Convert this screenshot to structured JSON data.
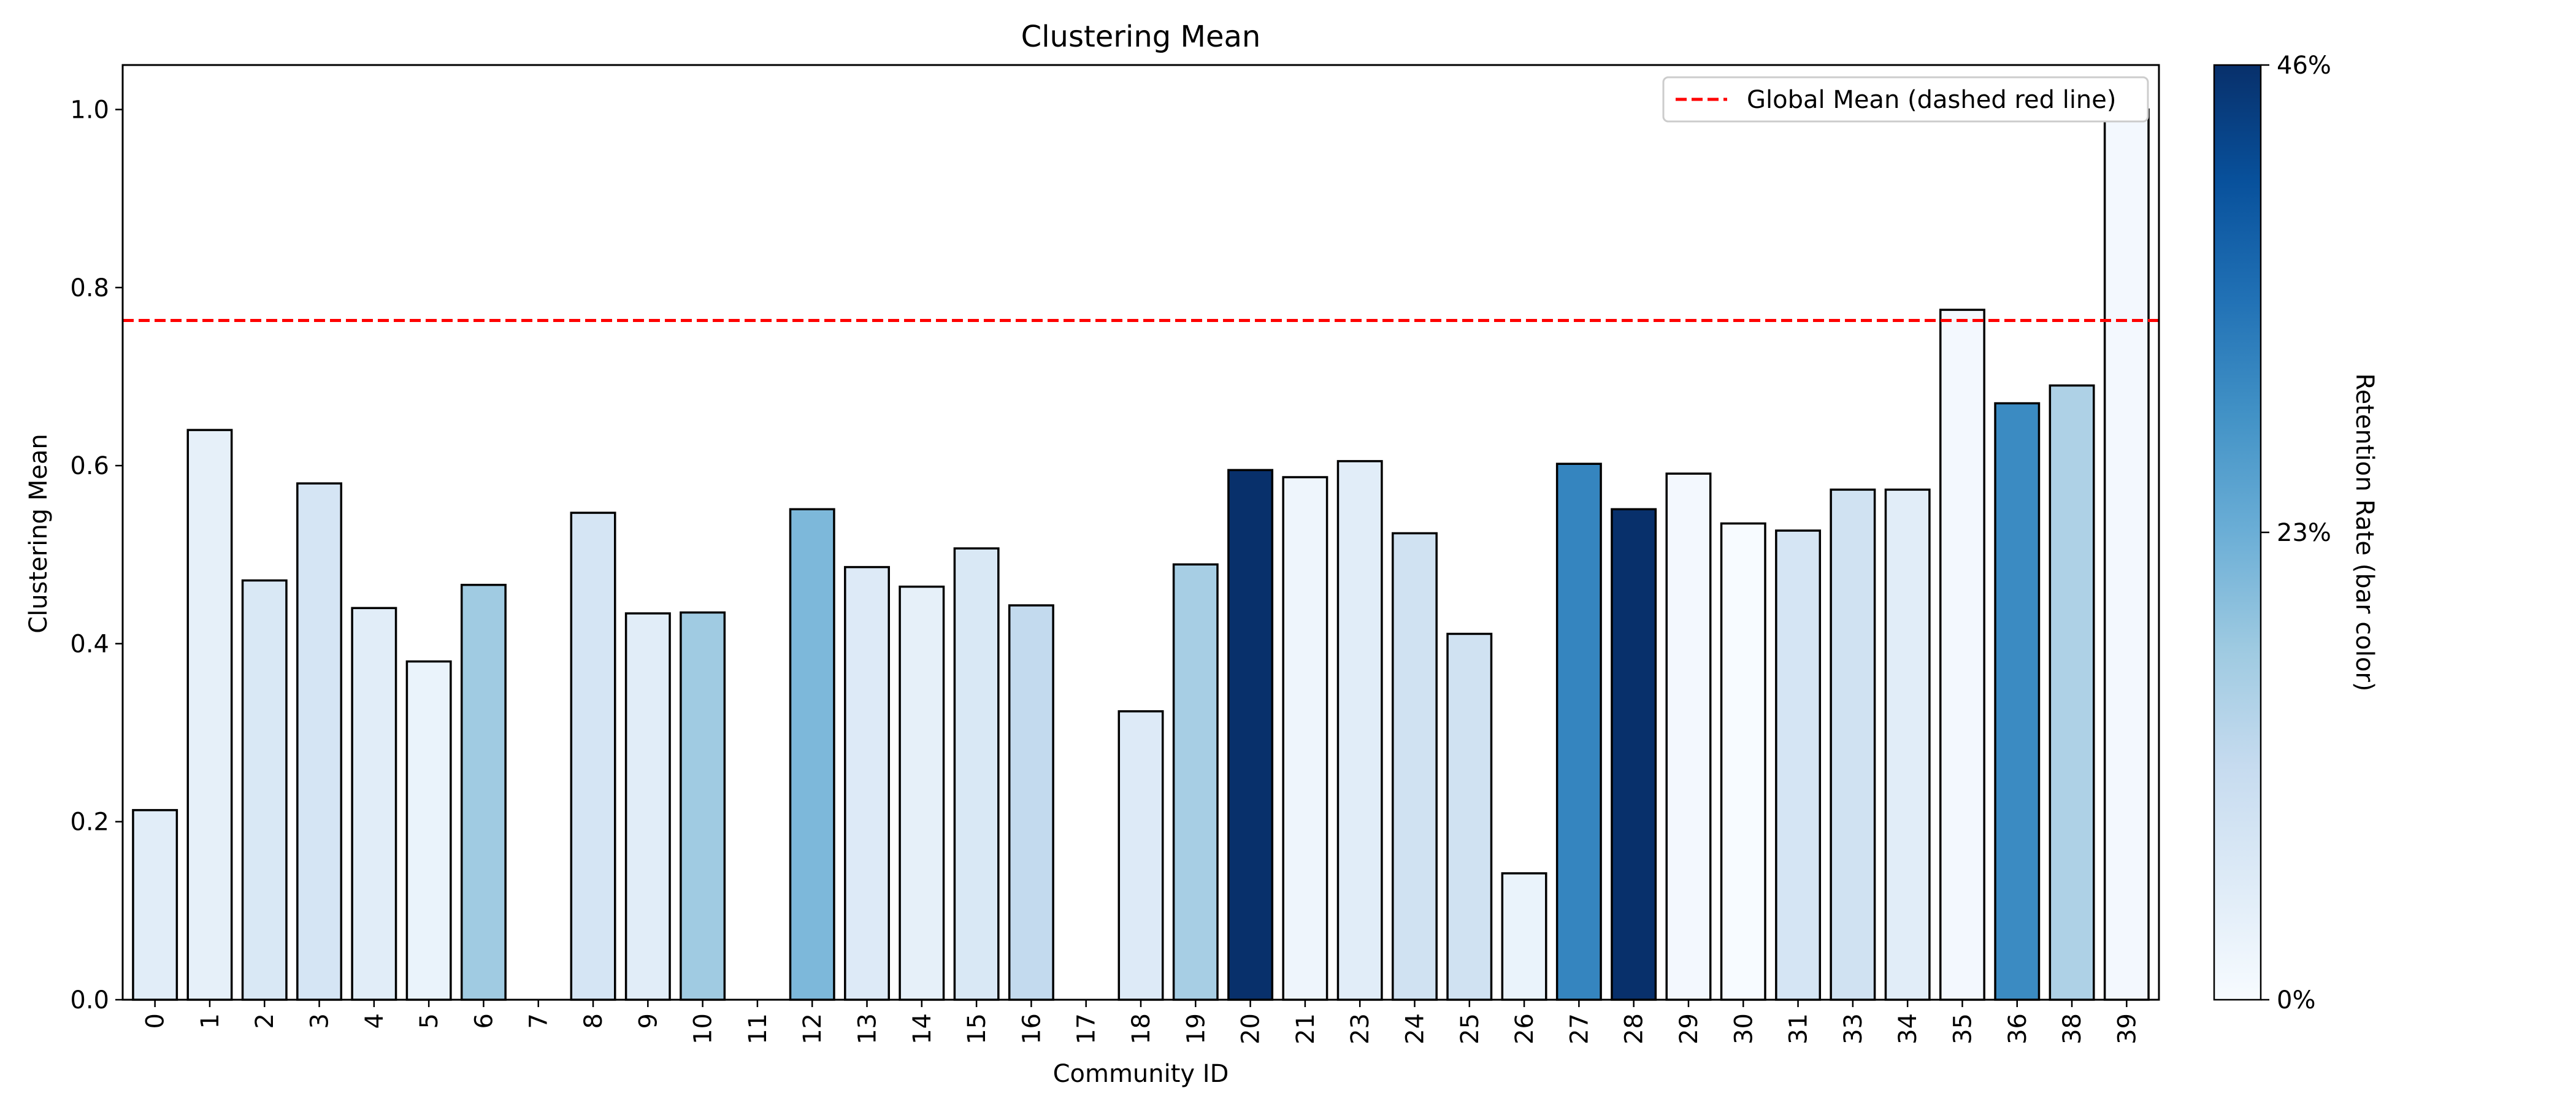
{
  "chart_data": {
    "type": "bar",
    "title": "Clustering Mean",
    "xlabel": "Community ID",
    "ylabel": "Clustering Mean",
    "ylim": [
      0,
      1.05
    ],
    "yticks": [
      "0.0",
      "0.2",
      "0.4",
      "0.6",
      "0.8",
      "1.0"
    ],
    "categories": [
      "0",
      "1",
      "2",
      "3",
      "4",
      "5",
      "6",
      "7",
      "8",
      "9",
      "10",
      "11",
      "12",
      "13",
      "14",
      "15",
      "16",
      "17",
      "18",
      "19",
      "20",
      "21",
      "23",
      "24",
      "25",
      "26",
      "27",
      "28",
      "29",
      "30",
      "31",
      "33",
      "34",
      "35",
      "36",
      "38",
      "39"
    ],
    "values": [
      0.213,
      0.64,
      0.471,
      0.58,
      0.44,
      0.38,
      0.466,
      0.0,
      0.547,
      0.434,
      0.435,
      0.0,
      0.551,
      0.486,
      0.464,
      0.507,
      0.443,
      0.0,
      0.324,
      0.489,
      0.595,
      0.587,
      0.605,
      0.524,
      0.411,
      0.142,
      0.602,
      0.551,
      0.591,
      0.535,
      0.527,
      0.573,
      0.573,
      0.775,
      0.67,
      0.69,
      1.0
    ],
    "retention": [
      0.05,
      0.04,
      0.07,
      0.08,
      0.05,
      0.03,
      0.17,
      0.0,
      0.08,
      0.05,
      0.17,
      0.0,
      0.21,
      0.06,
      0.04,
      0.07,
      0.12,
      0.0,
      0.06,
      0.16,
      0.46,
      0.02,
      0.05,
      0.09,
      0.09,
      0.03,
      0.31,
      0.46,
      0.01,
      0.0,
      0.08,
      0.09,
      0.05,
      0.01,
      0.3,
      0.15,
      0.01
    ],
    "global_mean": 0.763,
    "grid": false,
    "legend": {
      "position": "top-right",
      "label": "Global Mean (dashed red line)",
      "color": "#ff0000"
    },
    "colorbar": {
      "label": "Retention Rate (bar color)",
      "min": 0,
      "max": 0.46,
      "ticks": [
        "0%",
        "23%",
        "46%"
      ],
      "colormap": "Blues"
    }
  }
}
